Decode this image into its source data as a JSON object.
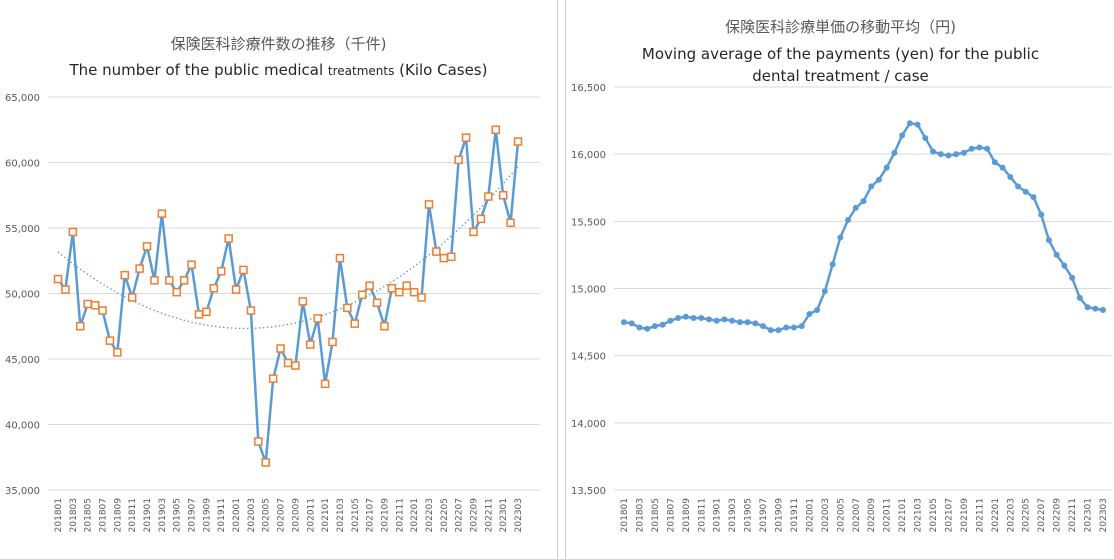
{
  "chart_data": [
    {
      "type": "line",
      "title_jp": "保険医科診療件数の推移（千件)",
      "title_en_main": "The number of the public medical ",
      "title_en_small": "treatments",
      "title_en_tail": "  (Kilo Cases)",
      "ylim": [
        35000,
        65000
      ],
      "y_ticks": [
        "35,000",
        "40,000",
        "45,000",
        "50,000",
        "55,000",
        "60,000",
        "65,000"
      ],
      "x_tick_labels": [
        "201801",
        "201803",
        "201805",
        "201807",
        "201809",
        "201811",
        "201901",
        "201903",
        "201905",
        "201907",
        "201909",
        "201911",
        "202001",
        "202003",
        "202005",
        "202007",
        "202009",
        "202011",
        "202101",
        "202103",
        "202105",
        "202107",
        "202109",
        "202111",
        "202201",
        "202203",
        "202205",
        "202207",
        "202209",
        "202211",
        "202301",
        "202303"
      ],
      "x": [
        "201801",
        "201802",
        "201803",
        "201804",
        "201805",
        "201806",
        "201807",
        "201808",
        "201809",
        "201810",
        "201811",
        "201812",
        "201901",
        "201902",
        "201903",
        "201904",
        "201905",
        "201906",
        "201907",
        "201908",
        "201909",
        "201910",
        "201911",
        "201912",
        "202001",
        "202002",
        "202003",
        "202004",
        "202005",
        "202006",
        "202007",
        "202008",
        "202009",
        "202010",
        "202011",
        "202012",
        "202101",
        "202102",
        "202103",
        "202104",
        "202105",
        "202106",
        "202107",
        "202108",
        "202109",
        "202110",
        "202111",
        "202112",
        "202201",
        "202202",
        "202203",
        "202204",
        "202205",
        "202206",
        "202207",
        "202208",
        "202209",
        "202210",
        "202211",
        "202212",
        "202301",
        "202302",
        "202303"
      ],
      "series": [
        {
          "values": [
            51100,
            50300,
            54700,
            47500,
            49200,
            49100,
            48700,
            46400,
            45500,
            51400,
            49700,
            51900,
            53600,
            51000,
            56100,
            51000,
            50100,
            51000,
            52200,
            48400,
            48600,
            50400,
            51700,
            54200,
            50300,
            51800,
            48700,
            38700,
            37100,
            43500,
            45800,
            44700,
            44500,
            49400,
            46100,
            48100,
            43100,
            46300,
            52700,
            48900,
            47700,
            49900,
            50600,
            49300,
            47500,
            50400,
            50100,
            50600,
            50100,
            49700,
            56800,
            53200,
            52700,
            52800,
            60200,
            61900,
            54700,
            55700,
            57400,
            62500,
            57500,
            55400,
            61600
          ],
          "color": "#5b9bd5",
          "marker_color": "#ed7d31"
        }
      ],
      "trendline": {
        "type": "polynomial",
        "color": "#5b9bd5"
      },
      "grid": true,
      "legend": "none"
    },
    {
      "type": "line",
      "title_jp": "保険医科診療単価の移動平均（円)",
      "title_en_line1": "Moving average of the payments (yen) for the public",
      "title_en_line2": "dental treatment / case",
      "ylim": [
        13500,
        16500
      ],
      "y_ticks": [
        "13,500",
        "14,000",
        "14,500",
        "15,000",
        "15,500",
        "16,000",
        "16,500"
      ],
      "x_tick_labels": [
        "201801",
        "201803",
        "201805",
        "201807",
        "201809",
        "201811",
        "201901",
        "201903",
        "201905",
        "201907",
        "201909",
        "201911",
        "202001",
        "202003",
        "202005",
        "202007",
        "202009",
        "202011",
        "202101",
        "202103",
        "202105",
        "202107",
        "202109",
        "202111",
        "202201",
        "202203",
        "202205",
        "202207",
        "202209",
        "202211",
        "202301",
        "202303"
      ],
      "x": [
        "201801",
        "201802",
        "201803",
        "201804",
        "201805",
        "201806",
        "201807",
        "201808",
        "201809",
        "201810",
        "201811",
        "201812",
        "201901",
        "201902",
        "201903",
        "201904",
        "201905",
        "201906",
        "201907",
        "201908",
        "201909",
        "201910",
        "201911",
        "201912",
        "202001",
        "202002",
        "202003",
        "202004",
        "202005",
        "202006",
        "202007",
        "202008",
        "202009",
        "202010",
        "202011",
        "202012",
        "202101",
        "202102",
        "202103",
        "202104",
        "202105",
        "202106",
        "202107",
        "202108",
        "202109",
        "202110",
        "202111",
        "202112",
        "202201",
        "202202",
        "202203",
        "202204",
        "202205",
        "202206",
        "202207",
        "202208",
        "202209",
        "202210",
        "202211",
        "202212",
        "202301",
        "202302",
        "202303"
      ],
      "series": [
        {
          "values": [
            14750,
            14740,
            14710,
            14700,
            14720,
            14730,
            14760,
            14780,
            14790,
            14780,
            14780,
            14770,
            14760,
            14770,
            14760,
            14750,
            14750,
            14740,
            14720,
            14690,
            14690,
            14710,
            14710,
            14720,
            14810,
            14840,
            14980,
            15180,
            15380,
            15510,
            15600,
            15650,
            15760,
            15810,
            15900,
            16010,
            16140,
            16230,
            16220,
            16120,
            16020,
            16000,
            15990,
            16000,
            16010,
            16040,
            16050,
            16040,
            15940,
            15900,
            15830,
            15760,
            15720,
            15680,
            15550,
            15360,
            15250,
            15170,
            15080,
            14930,
            14860,
            14850,
            14840
          ],
          "color": "#5b9bd5"
        }
      ],
      "grid": true,
      "legend": "none"
    }
  ]
}
